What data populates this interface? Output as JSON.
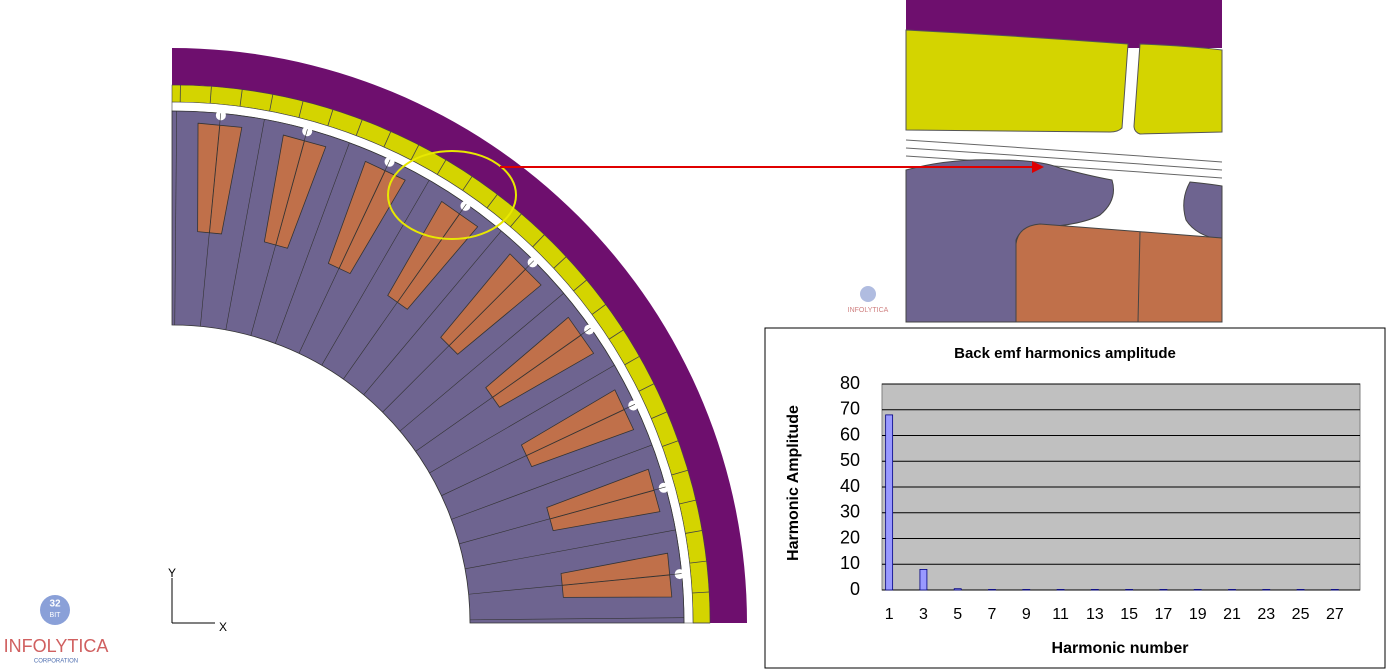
{
  "chart_data": {
    "type": "bar",
    "title": "Back emf harmonics amplitude",
    "x_label": "Harmonic number",
    "y_label": "Harmonic Amplitude",
    "categories": [
      "1",
      "3",
      "5",
      "7",
      "9",
      "11",
      "13",
      "15",
      "17",
      "19",
      "21",
      "23",
      "25",
      "27"
    ],
    "values": [
      68,
      8,
      0.5,
      0.2,
      0.2,
      0.2,
      0.2,
      0.2,
      0.2,
      0.2,
      0.2,
      0.2,
      0.2,
      0.2
    ],
    "color": "#9999ff",
    "ylim": [
      0,
      80
    ],
    "yticks": [
      0,
      10,
      20,
      30,
      40,
      50,
      60,
      70,
      80
    ],
    "grid": true
  },
  "diagram": {
    "axis_y": "Y",
    "axis_x": "X",
    "logo": "INFOLYTICA",
    "logo_sub": "CORPORATION",
    "logo_badge": "32",
    "logo_badge_sub": "BIT"
  }
}
